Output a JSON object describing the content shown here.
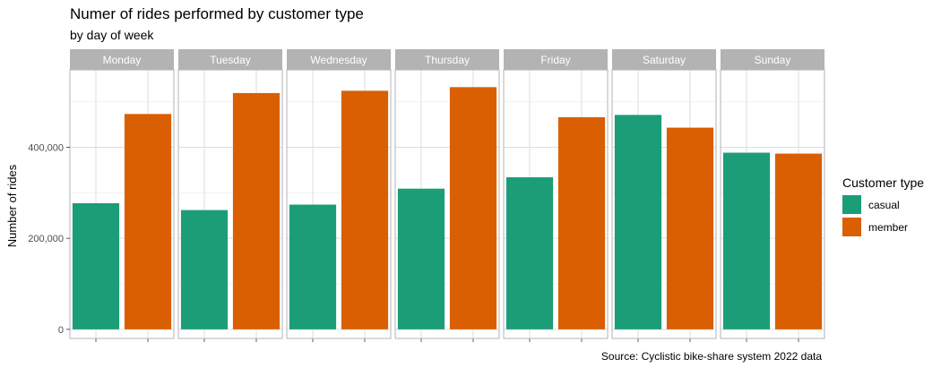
{
  "chart_data": {
    "type": "bar",
    "title": "Numer of rides performed by customer type",
    "subtitle": "by day of week",
    "ylabel": "Number of rides",
    "xlabel": "",
    "caption": "Source: Cyclistic bike-share system 2022 data",
    "facets": [
      "Monday",
      "Tuesday",
      "Wednesday",
      "Thursday",
      "Friday",
      "Saturday",
      "Sunday"
    ],
    "series": [
      {
        "name": "casual",
        "color": "#1b9e77",
        "values": [
          277000,
          262000,
          274000,
          309000,
          334000,
          471000,
          388000
        ]
      },
      {
        "name": "member",
        "color": "#d95f02",
        "values": [
          473000,
          519000,
          524000,
          532000,
          466000,
          443000,
          386000
        ]
      }
    ],
    "ylim": [
      -20000,
      570000
    ],
    "yticks": [
      0,
      200000,
      400000
    ],
    "ytick_labels": [
      "0",
      "200,000",
      "400,000"
    ],
    "legend": {
      "title": "Customer type",
      "position": "right"
    },
    "grid": true,
    "theme": "light",
    "strip_color": "#b3b3b3"
  }
}
